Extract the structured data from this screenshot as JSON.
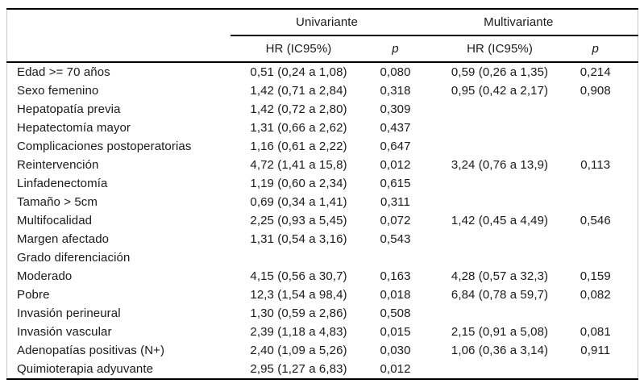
{
  "colors": {
    "rule": "#000000",
    "frame_border": "#c6c6c6",
    "text": "#1a1a1a",
    "background": "#ffffff"
  },
  "table": {
    "group_headers": {
      "univariante": "Univariante",
      "multivariante": "Multivariante"
    },
    "column_headers": {
      "hr_univariante": "HR (IC95%)",
      "p_univariante": "p",
      "hr_multivariante": "HR (IC95%)",
      "p_multivariante": "p"
    },
    "rows": [
      {
        "label": "Edad >= 70 años",
        "hr_uni": "0,51 (0,24 a 1,08)",
        "p_uni": "0,080",
        "hr_multi": "0,59 (0,26 a 1,35)",
        "p_multi": "0,214"
      },
      {
        "label": "Sexo femenino",
        "hr_uni": "1,42 (0,71 a 2,84)",
        "p_uni": "0,318",
        "hr_multi": "0,95 (0,42 a 2,17)",
        "p_multi": "0,908"
      },
      {
        "label": "Hepatopatía previa",
        "hr_uni": "1,42 (0,72 a 2,80)",
        "p_uni": "0,309",
        "hr_multi": "",
        "p_multi": ""
      },
      {
        "label": "Hepatectomía mayor",
        "hr_uni": "1,31 (0,66 a 2,62)",
        "p_uni": "0,437",
        "hr_multi": "",
        "p_multi": ""
      },
      {
        "label": "Complicaciones postoperatorias",
        "hr_uni": "1,16 (0,61 a 2,22)",
        "p_uni": "0,647",
        "hr_multi": "",
        "p_multi": ""
      },
      {
        "label": "Reintervención",
        "hr_uni": "4,72 (1,41 a 15,8)",
        "p_uni": "0,012",
        "hr_multi": "3,24 (0,76 a 13,9)",
        "p_multi": "0,113"
      },
      {
        "label": "Linfadenectomía",
        "hr_uni": "1,19 (0,60 a 2,34)",
        "p_uni": "0,615",
        "hr_multi": "",
        "p_multi": ""
      },
      {
        "label": "Tamaño > 5cm",
        "hr_uni": "0,69 (0,34 a 1,41)",
        "p_uni": "0,311",
        "hr_multi": "",
        "p_multi": ""
      },
      {
        "label": "Multifocalidad",
        "hr_uni": "2,25 (0,93 a 5,45)",
        "p_uni": "0,072",
        "hr_multi": "1,42 (0,45 a 4,49)",
        "p_multi": "0,546"
      },
      {
        "label": "Margen afectado",
        "hr_uni": "1,31 (0,54 a 3,16)",
        "p_uni": "0,543",
        "hr_multi": "",
        "p_multi": ""
      },
      {
        "label": "Grado diferenciación",
        "hr_uni": "",
        "p_uni": "",
        "hr_multi": "",
        "p_multi": ""
      },
      {
        "label": "Moderado",
        "hr_uni": "4,15 (0,56 a 30,7)",
        "p_uni": "0,163",
        "hr_multi": "4,28 (0,57 a 32,3)",
        "p_multi": "0,159"
      },
      {
        "label": "Pobre",
        "hr_uni": "12,3 (1,54 a 98,4)",
        "p_uni": "0,018",
        "hr_multi": "6,84 (0,78 a 59,7)",
        "p_multi": "0,082"
      },
      {
        "label": "Invasión perineural",
        "hr_uni": "1,30 (0,59 a 2,86)",
        "p_uni": "0,508",
        "hr_multi": "",
        "p_multi": ""
      },
      {
        "label": "Invasión vascular",
        "hr_uni": "2,39 (1,18 a 4,83)",
        "p_uni": "0,015",
        "hr_multi": "2,15 (0,91 a 5,08)",
        "p_multi": "0,081"
      },
      {
        "label": "Adenopatías positivas (N+)",
        "hr_uni": "2,40 (1,09 a 5,26)",
        "p_uni": "0,030",
        "hr_multi": "1,06 (0,36 a 3,14)",
        "p_multi": "0,911"
      },
      {
        "label": "Quimioterapia adyuvante",
        "hr_uni": "2,95 (1,27 a 6,83)",
        "p_uni": "0,012",
        "hr_multi": "",
        "p_multi": ""
      }
    ]
  }
}
